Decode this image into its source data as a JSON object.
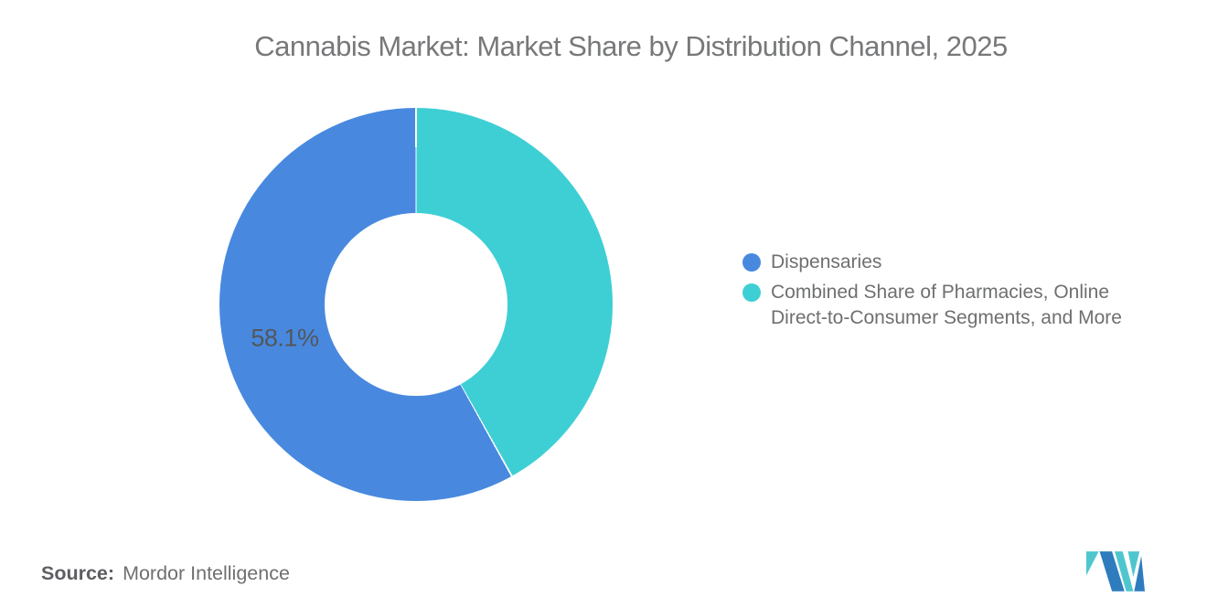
{
  "title": "Cannabis Market: Market Share by Distribution Channel, 2025",
  "chart_data": {
    "type": "pie",
    "subtype": "donut",
    "title": "Cannabis Market: Market Share by Distribution Channel, 2025",
    "categories": [
      "Dispensaries",
      "Combined Share of Pharmacies, Online Direct-to-Consumer Segments, and More"
    ],
    "values": [
      58.1,
      41.9
    ],
    "unit": "%",
    "colors": [
      "#4889DF",
      "#3ECFD5"
    ],
    "data_labels": [
      "58.1%",
      null
    ],
    "legend_position": "right",
    "background": "#ffffff",
    "render": {
      "clockwise_from_top_order": [
        1,
        0
      ],
      "inner_radius_ratio": 0.465,
      "label_radius_ratio": 0.69,
      "separator_deg": 0.5,
      "separator_color": "#ffffff"
    }
  },
  "legend": {
    "items": [
      {
        "label": "Dispensaries",
        "color": "#4889DF"
      },
      {
        "label": "Combined Share of Pharmacies, Online Direct-to-Consumer Segments, and More",
        "color": "#3ECFD5"
      }
    ]
  },
  "source": {
    "prefix": "Source:",
    "name": "Mordor Intelligence"
  },
  "logo": {
    "name": "mordor-intelligence",
    "blue": "#2E7CBE",
    "teal": "#4FC6CE"
  }
}
